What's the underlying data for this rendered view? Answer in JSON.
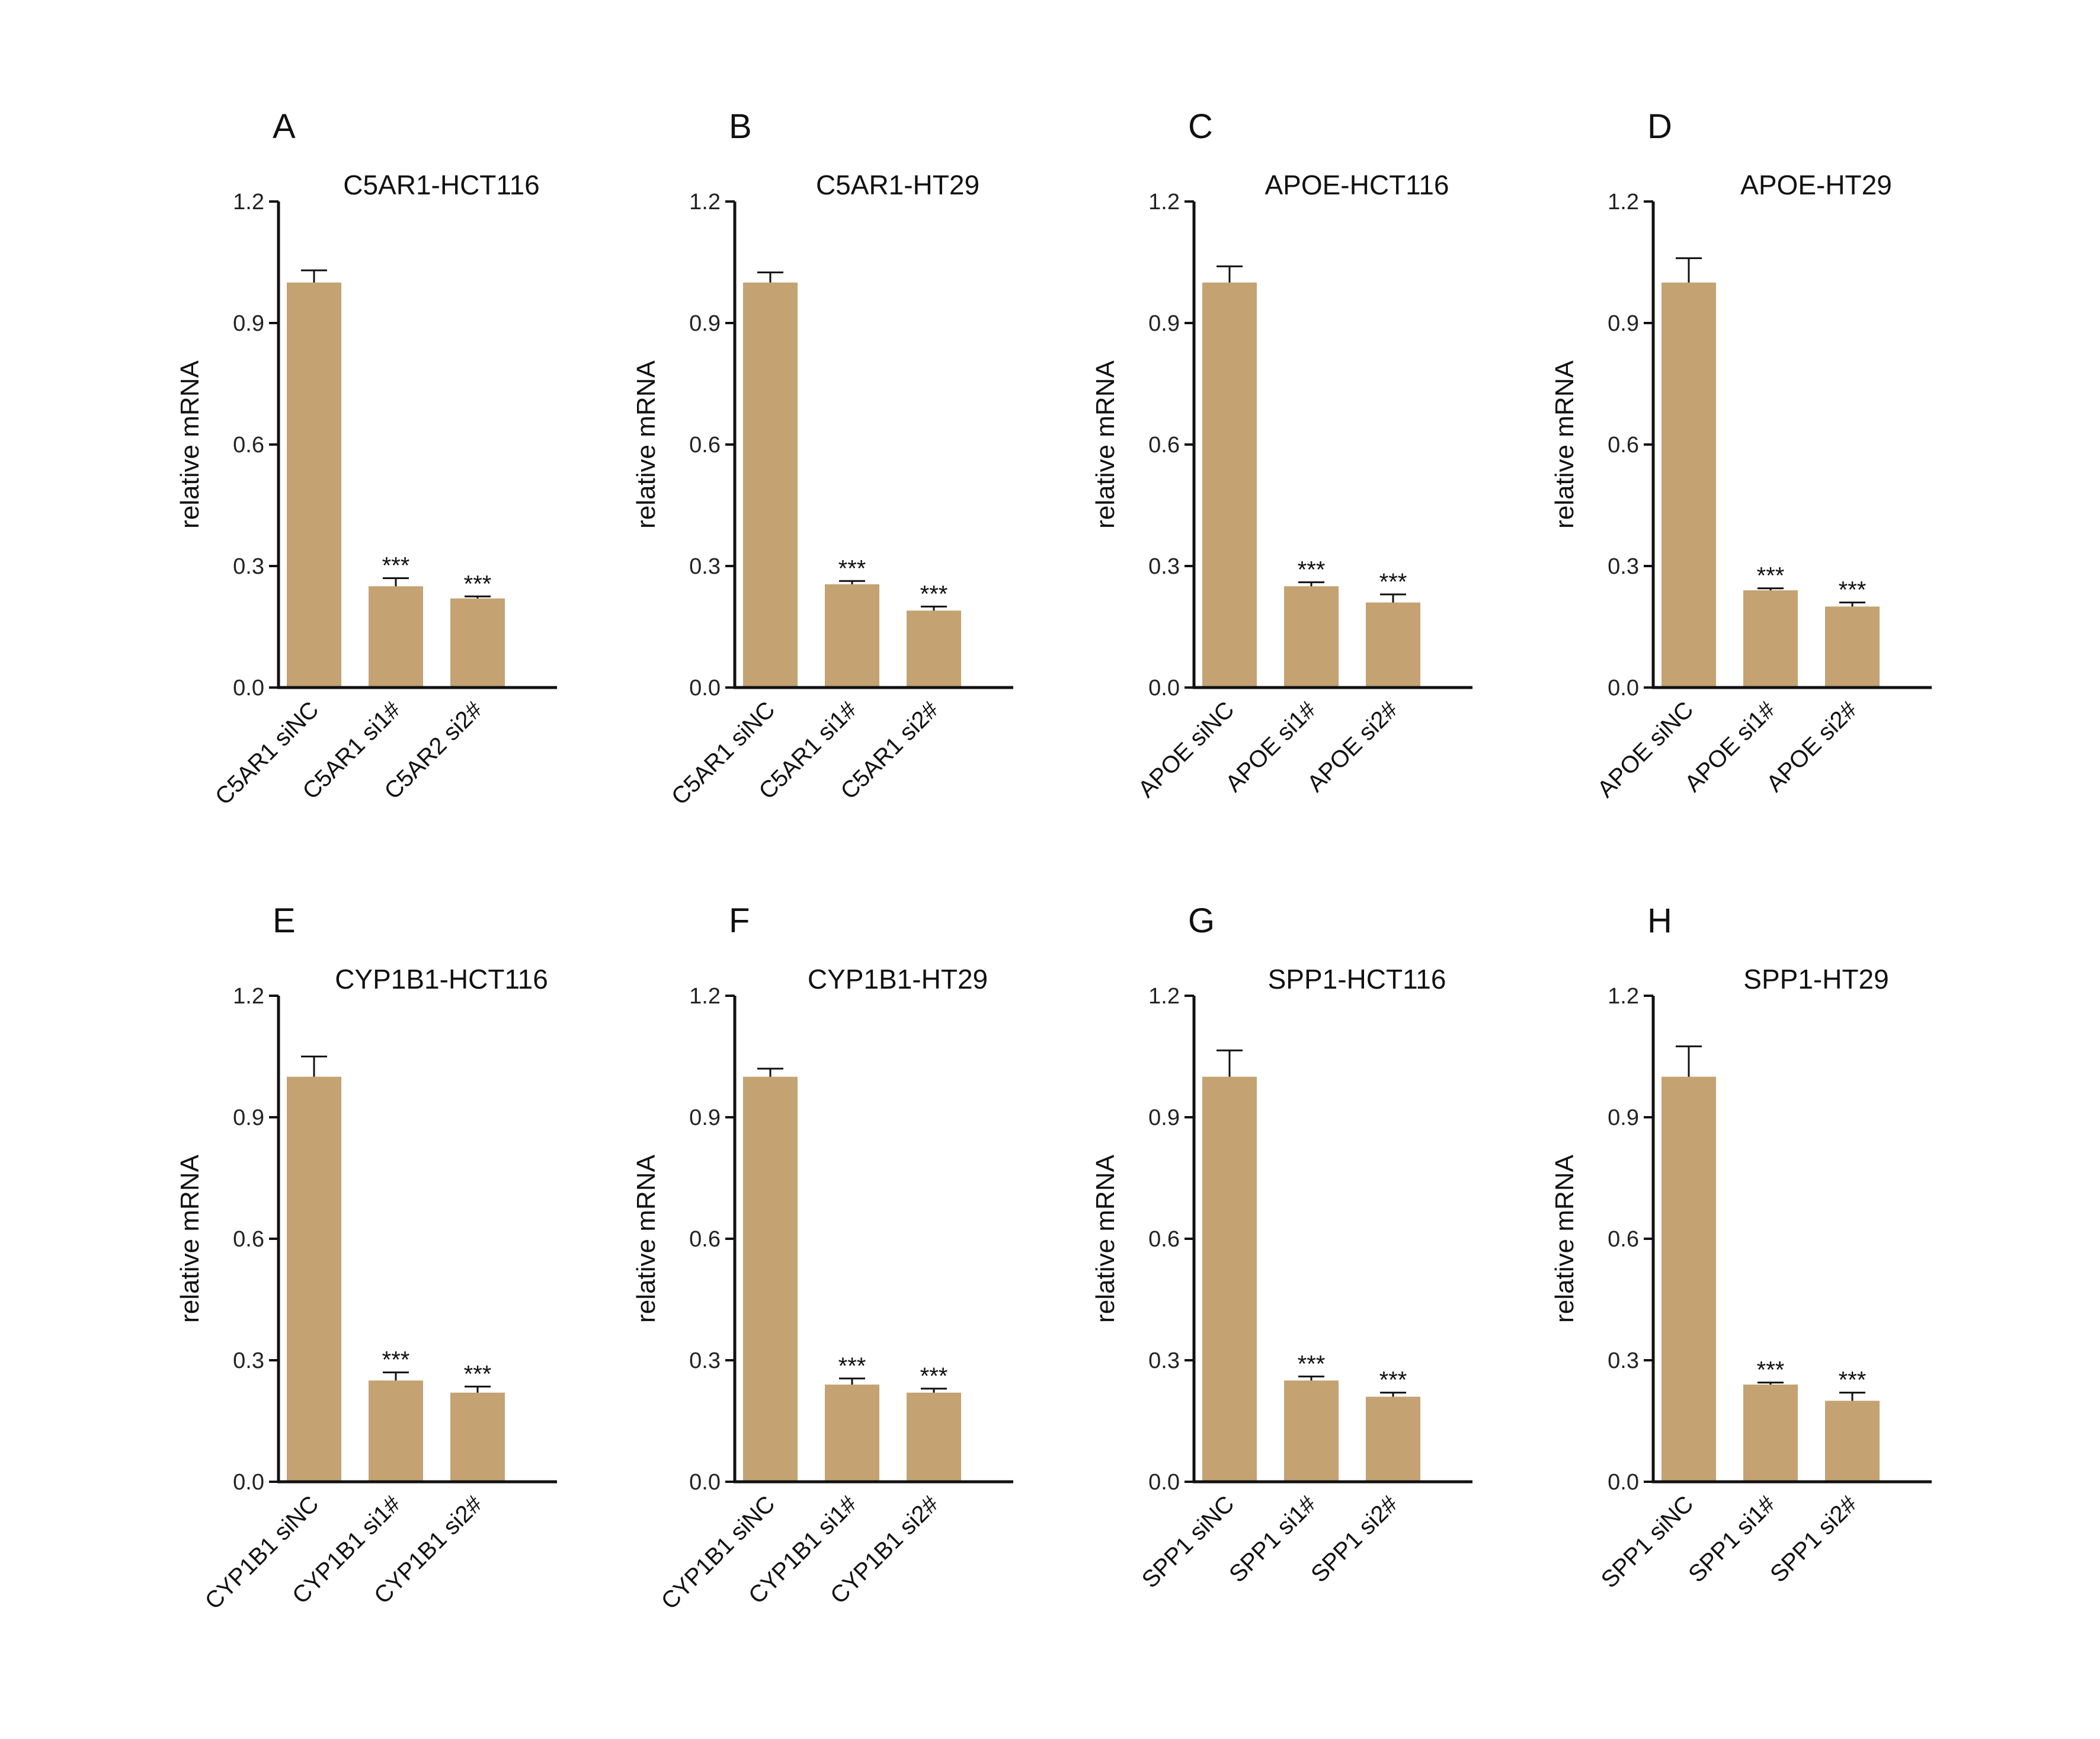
{
  "chart_data": [
    {
      "type": "bar",
      "letter": "A",
      "title": "C5AR1-HCT116",
      "ylabel": "relative mRNA",
      "ylim": [
        0,
        1.2
      ],
      "yticks": [
        "0.0",
        "0.3",
        "0.6",
        "0.9",
        "1.2"
      ],
      "categories": [
        "C5AR1 siNC",
        "C5AR1 si1#",
        "C5AR2 si2#"
      ],
      "values": [
        1.0,
        0.25,
        0.22
      ],
      "errors": [
        0.03,
        0.02,
        0.005
      ],
      "significance": [
        "",
        "***",
        "***"
      ],
      "bar_color": "#C4A272"
    },
    {
      "type": "bar",
      "letter": "B",
      "title": "C5AR1-HT29",
      "ylabel": "relative mRNA",
      "ylim": [
        0,
        1.2
      ],
      "yticks": [
        "0.0",
        "0.3",
        "0.6",
        "0.9",
        "1.2"
      ],
      "categories": [
        "C5AR1 siNC",
        "C5AR1 si1#",
        "C5AR1 si2#"
      ],
      "values": [
        1.0,
        0.255,
        0.19
      ],
      "errors": [
        0.025,
        0.008,
        0.01
      ],
      "significance": [
        "",
        "***",
        "***"
      ],
      "bar_color": "#C4A272"
    },
    {
      "type": "bar",
      "letter": "C",
      "title": "APOE-HCT116",
      "ylabel": "relative mRNA",
      "ylim": [
        0,
        1.2
      ],
      "yticks": [
        "0.0",
        "0.3",
        "0.6",
        "0.9",
        "1.2"
      ],
      "categories": [
        "APOE siNC",
        "APOE si1#",
        "APOE si2#"
      ],
      "values": [
        1.0,
        0.25,
        0.21
      ],
      "errors": [
        0.04,
        0.01,
        0.02
      ],
      "significance": [
        "",
        "***",
        "***"
      ],
      "bar_color": "#C4A272"
    },
    {
      "type": "bar",
      "letter": "D",
      "title": "APOE-HT29",
      "ylabel": "relative mRNA",
      "ylim": [
        0,
        1.2
      ],
      "yticks": [
        "0.0",
        "0.3",
        "0.6",
        "0.9",
        "1.2"
      ],
      "categories": [
        "APOE siNC",
        "APOE si1#",
        "APOE si2#"
      ],
      "values": [
        1.0,
        0.24,
        0.2
      ],
      "errors": [
        0.06,
        0.005,
        0.01
      ],
      "significance": [
        "",
        "***",
        "***"
      ],
      "bar_color": "#C4A272"
    },
    {
      "type": "bar",
      "letter": "E",
      "title": "CYP1B1-HCT116",
      "ylabel": "relative mRNA",
      "ylim": [
        0,
        1.2
      ],
      "yticks": [
        "0.0",
        "0.3",
        "0.6",
        "0.9",
        "1.2"
      ],
      "categories": [
        "CYP1B1 siNC",
        "CYP1B1 si1#",
        "CYP1B1 si2#"
      ],
      "values": [
        1.0,
        0.25,
        0.22
      ],
      "errors": [
        0.05,
        0.02,
        0.015
      ],
      "significance": [
        "",
        "***",
        "***"
      ],
      "bar_color": "#C4A272"
    },
    {
      "type": "bar",
      "letter": "F",
      "title": "CYP1B1-HT29",
      "ylabel": "relative mRNA",
      "ylim": [
        0,
        1.2
      ],
      "yticks": [
        "0.0",
        "0.3",
        "0.6",
        "0.9",
        "1.2"
      ],
      "categories": [
        "CYP1B1 siNC",
        "CYP1B1 si1#",
        "CYP1B1 si2#"
      ],
      "values": [
        1.0,
        0.24,
        0.22
      ],
      "errors": [
        0.02,
        0.015,
        0.01
      ],
      "significance": [
        "",
        "***",
        "***"
      ],
      "bar_color": "#C4A272"
    },
    {
      "type": "bar",
      "letter": "G",
      "title": "SPP1-HCT116",
      "ylabel": "relative mRNA",
      "ylim": [
        0,
        1.2
      ],
      "yticks": [
        "0.0",
        "0.3",
        "0.6",
        "0.9",
        "1.2"
      ],
      "categories": [
        "SPP1 siNC",
        "SPP1 si1#",
        "SPP1 si2#"
      ],
      "values": [
        1.0,
        0.25,
        0.21
      ],
      "errors": [
        0.065,
        0.01,
        0.01
      ],
      "significance": [
        "",
        "***",
        "***"
      ],
      "bar_color": "#C4A272"
    },
    {
      "type": "bar",
      "letter": "H",
      "title": "SPP1-HT29",
      "ylabel": "relative mRNA",
      "ylim": [
        0,
        1.2
      ],
      "yticks": [
        "0.0",
        "0.3",
        "0.6",
        "0.9",
        "1.2"
      ],
      "categories": [
        "SPP1 siNC",
        "SPP1 si1#",
        "SPP1 si2#"
      ],
      "values": [
        1.0,
        0.24,
        0.2
      ],
      "errors": [
        0.075,
        0.005,
        0.02
      ],
      "significance": [
        "",
        "***",
        "***"
      ],
      "bar_color": "#C4A272"
    }
  ]
}
